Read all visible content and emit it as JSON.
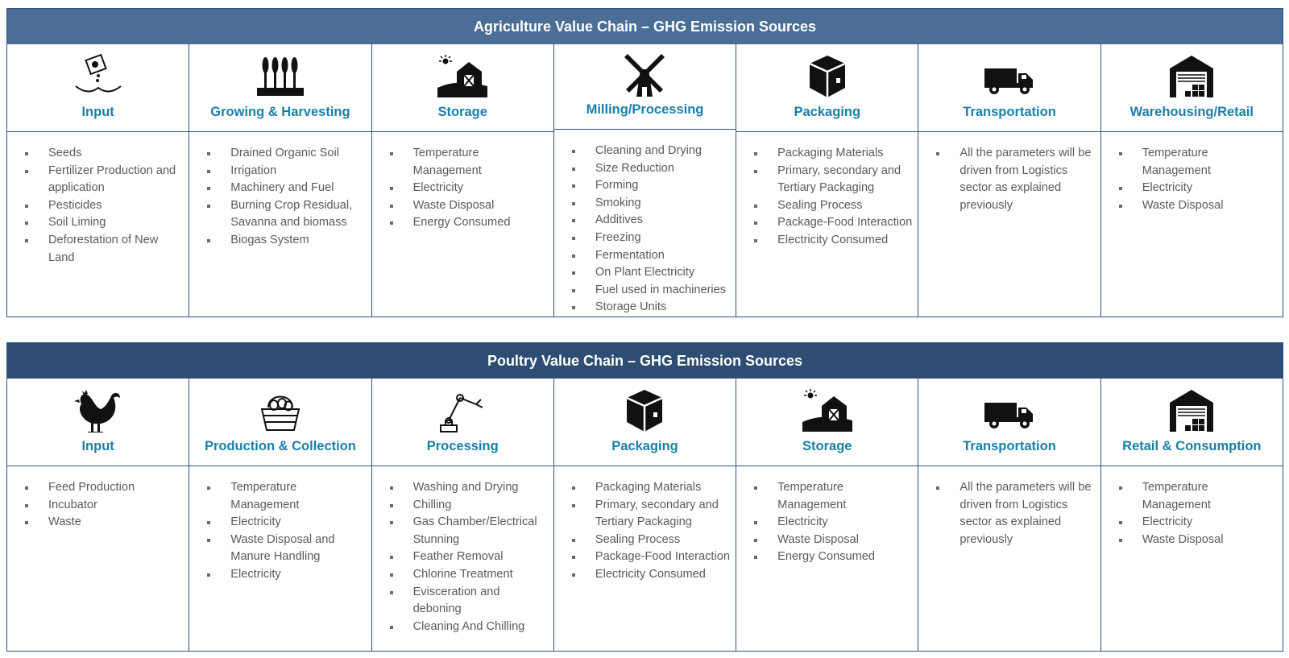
{
  "colors": {
    "banner_agri": "#4a6e96",
    "banner_poultry": "#2d4d72",
    "stage_title": "#1a7fa8",
    "border": "#2f5480"
  },
  "agriculture": {
    "title": "Agriculture Value Chain – GHG Emission Sources",
    "stages": [
      {
        "icon": "fertilizer-bag-icon",
        "title": "Input",
        "items": [
          "Seeds",
          "Fertilizer Production and application",
          "Pesticides",
          "Soil Liming",
          "Deforestation of New Land"
        ]
      },
      {
        "icon": "wheat-crop-icon",
        "title": "Growing & Harvesting",
        "items": [
          "Drained Organic Soil",
          "Irrigation",
          "Machinery and Fuel",
          "Burning Crop Residual, Savanna and biomass",
          "Biogas System"
        ]
      },
      {
        "icon": "barn-icon",
        "title": "Storage",
        "items": [
          "Temperature Management",
          "Electricity",
          "Waste Disposal",
          "Energy Consumed"
        ]
      },
      {
        "icon": "windmill-icon",
        "title": "Milling/Processing",
        "items": [
          "Cleaning and Drying",
          "Size Reduction",
          "Forming",
          "Smoking",
          "Additives",
          "Freezing",
          "Fermentation",
          "On Plant Electricity",
          "Fuel used in machineries",
          "Storage Units"
        ]
      },
      {
        "icon": "box-icon",
        "title": "Packaging",
        "items": [
          "Packaging Materials",
          "Primary, secondary and Tertiary Packaging",
          "Sealing Process",
          "Package-Food Interaction",
          "Electricity Consumed"
        ]
      },
      {
        "icon": "truck-icon",
        "title": "Transportation",
        "items": [
          "All the parameters will be driven from Logistics sector as explained previously"
        ]
      },
      {
        "icon": "warehouse-icon",
        "title": "Warehousing/Retail",
        "items": [
          "Temperature Management",
          "Electricity",
          "Waste Disposal"
        ]
      }
    ]
  },
  "poultry": {
    "title": "Poultry Value Chain – GHG Emission Sources",
    "stages": [
      {
        "icon": "rooster-icon",
        "title": "Input",
        "items": [
          "Feed Production",
          "Incubator",
          "Waste"
        ]
      },
      {
        "icon": "egg-basket-icon",
        "title": "Production & Collection",
        "items": [
          "Temperature Management",
          "Electricity",
          "Waste Disposal and Manure Handling",
          "Electricity"
        ]
      },
      {
        "icon": "robot-arm-icon",
        "title": "Processing",
        "items": [
          "Washing and Drying",
          "Chilling",
          "Gas Chamber/Electrical Stunning",
          "Feather Removal",
          "Chlorine Treatment",
          "Evisceration and deboning",
          "Cleaning And Chilling"
        ]
      },
      {
        "icon": "box-icon",
        "title": "Packaging",
        "items": [
          "Packaging Materials",
          "Primary, secondary and Tertiary Packaging",
          "Sealing Process",
          "Package-Food Interaction",
          "Electricity Consumed"
        ]
      },
      {
        "icon": "barn-icon",
        "title": "Storage",
        "items": [
          "Temperature Management",
          "Electricity",
          "Waste Disposal",
          "Energy Consumed"
        ]
      },
      {
        "icon": "truck-icon",
        "title": "Transportation",
        "items": [
          "All the parameters will be driven from Logistics sector as explained previously"
        ]
      },
      {
        "icon": "warehouse-icon",
        "title": "Retail & Consumption",
        "items": [
          "Temperature Management",
          "Electricity",
          "Waste Disposal"
        ]
      }
    ]
  }
}
